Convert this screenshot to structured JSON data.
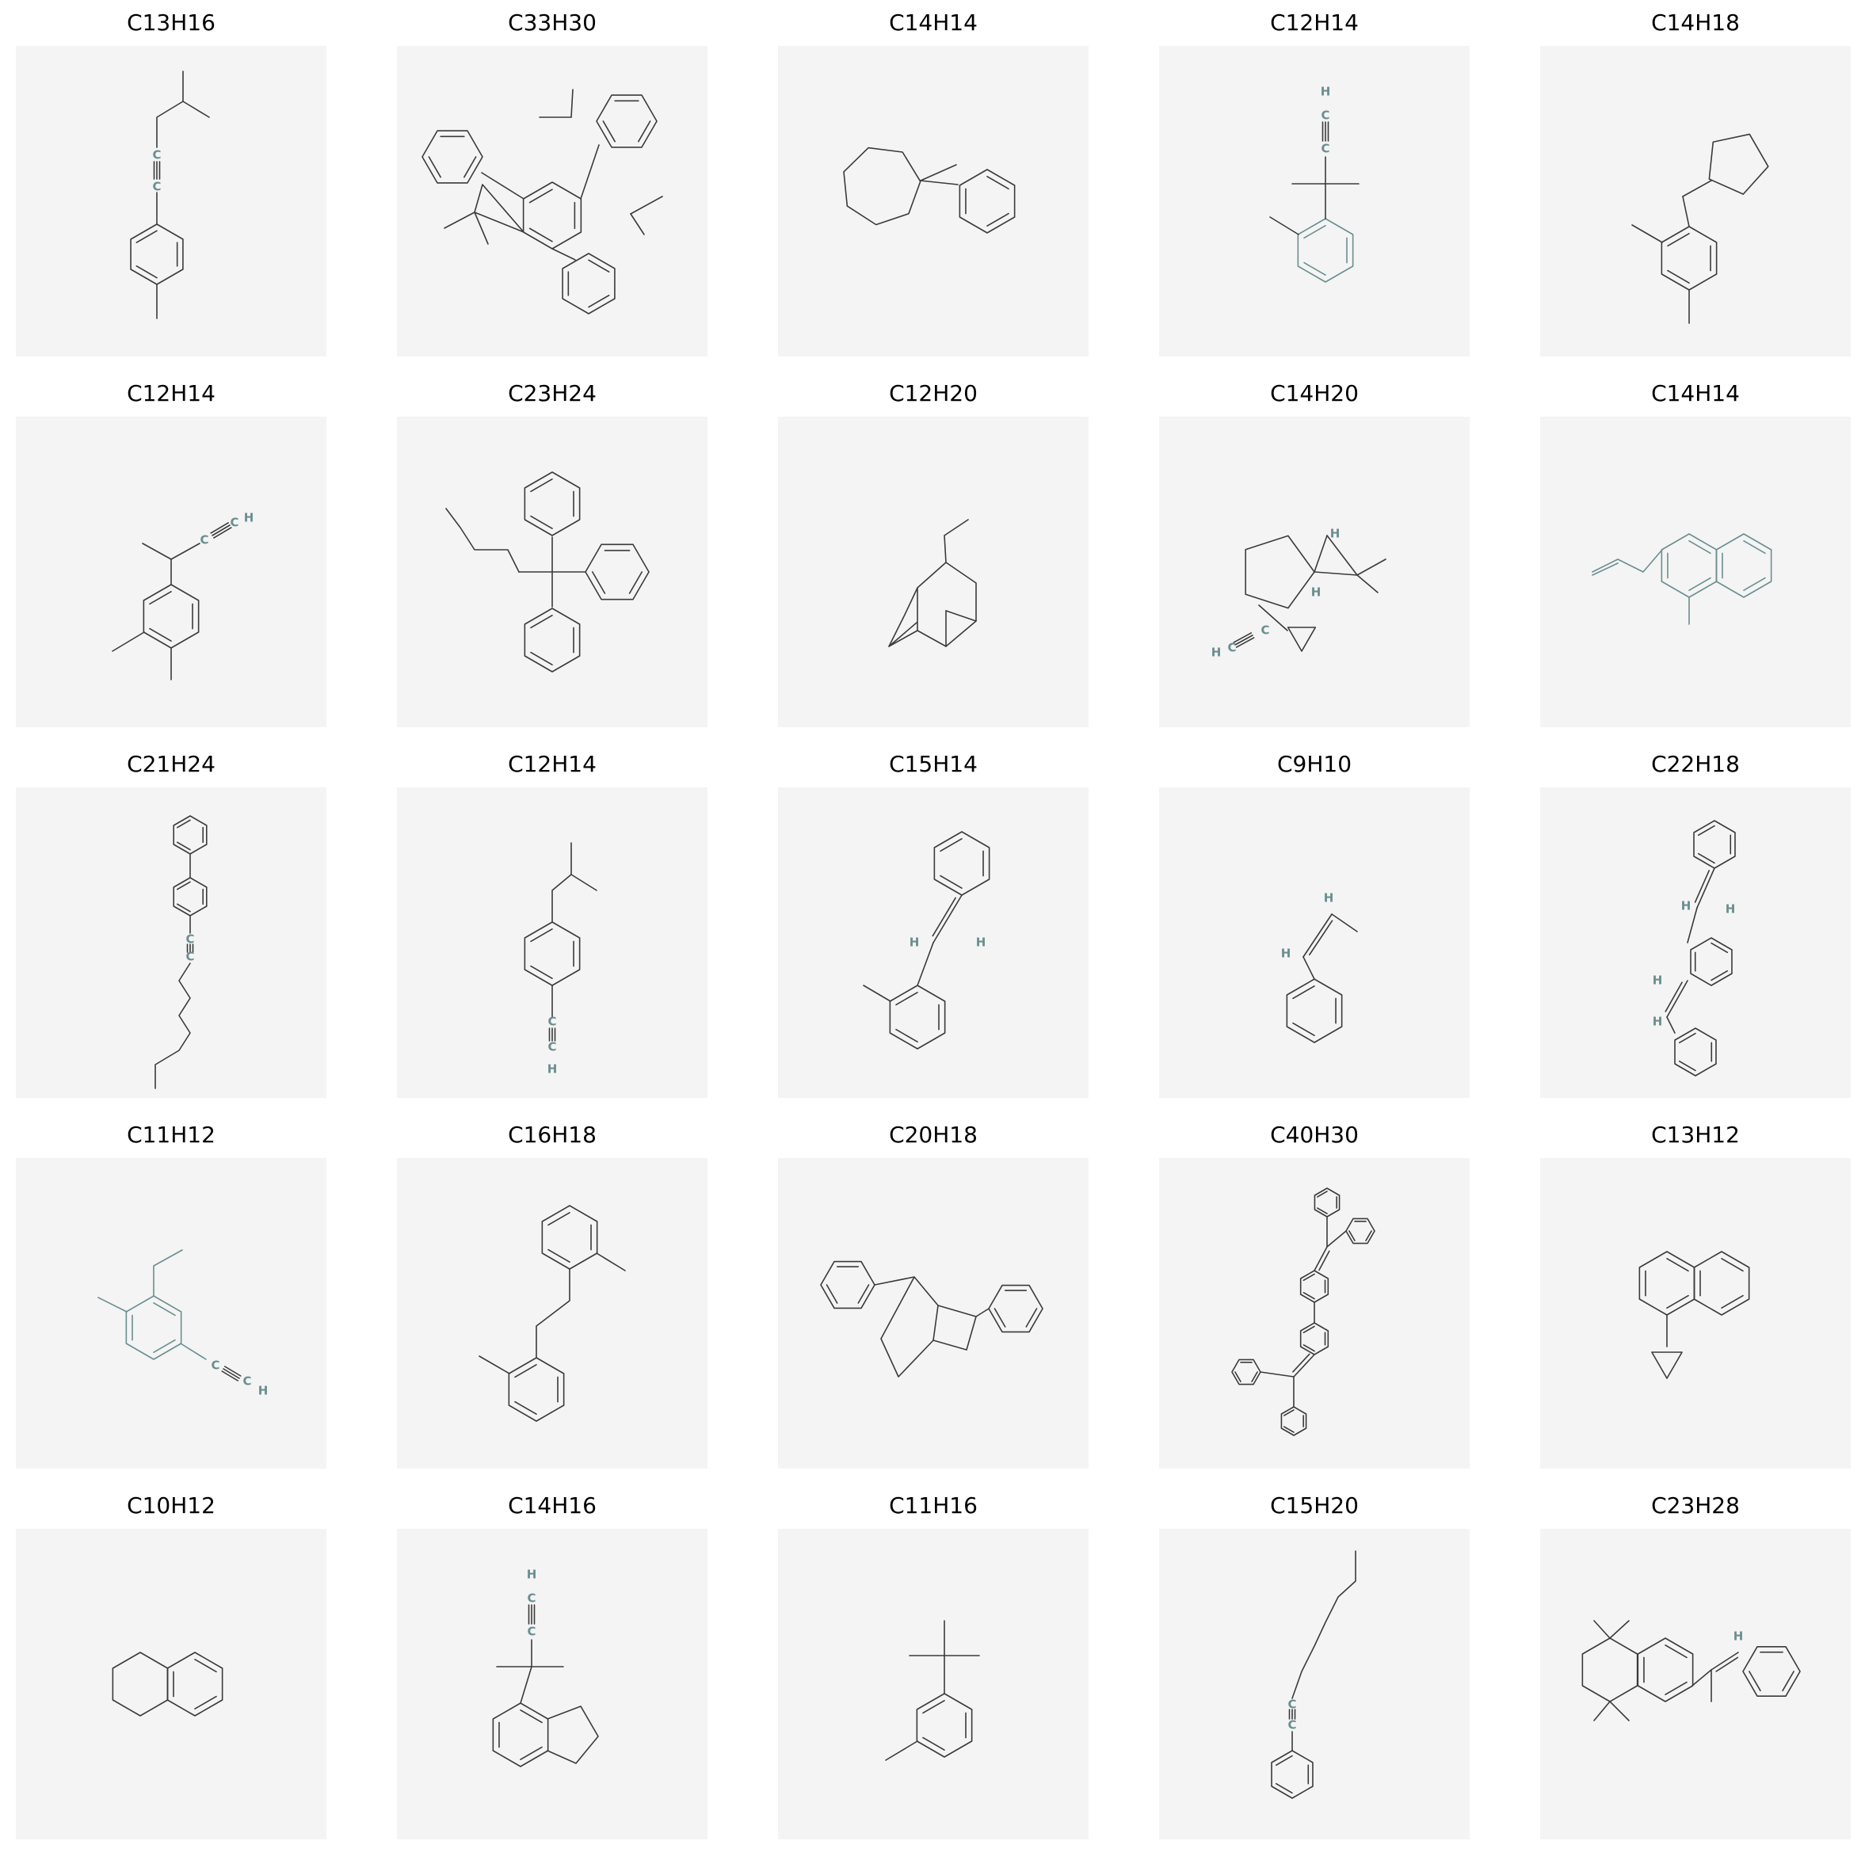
{
  "molecules": [
    {
      "formula": "C13H16",
      "structure": "4-methylphenyl alkyne with isobutyl chain"
    },
    {
      "formula": "C33H30",
      "structure": "hexamethyl truxene"
    },
    {
      "formula": "C14H14",
      "structure": "1-methyl-1-phenyl cycloheptatriene"
    },
    {
      "formula": "C12H14",
      "structure": "2-methylphenyl tertiary alkyne"
    },
    {
      "formula": "C14H18",
      "structure": "cyclopentenylmethyl xylene"
    },
    {
      "formula": "C12H14",
      "structure": "3,4-dimethylphenyl butyne"
    },
    {
      "formula": "C23H24",
      "structure": "triphenyl pentane"
    },
    {
      "formula": "C12H20",
      "structure": "ethyl adamantane"
    },
    {
      "formula": "C14H20",
      "structure": "pinane cyclopropyl alkyne"
    },
    {
      "formula": "C14H14",
      "structure": "allyl methyl naphthalene"
    },
    {
      "formula": "C21H24",
      "structure": "biphenyl octyne"
    },
    {
      "formula": "C12H14",
      "structure": "isobutyl ethynylbenzene"
    },
    {
      "formula": "C15H14",
      "structure": "2-methylstilbene"
    },
    {
      "formula": "C9H10",
      "structure": "propenylbenzene"
    },
    {
      "formula": "C22H18",
      "structure": "bis-styryl benzene"
    },
    {
      "formula": "C11H12",
      "structure": "ethyl methyl ethynylbenzene"
    },
    {
      "formula": "C16H18",
      "structure": "bis(2-methylphenyl)ethane"
    },
    {
      "formula": "C20H18",
      "structure": "diphenyl bicyclooctadiene"
    },
    {
      "formula": "C40H30",
      "structure": "bis(diphenylvinyl)biphenyl"
    },
    {
      "formula": "C13H12",
      "structure": "cyclopropyl naphthalene"
    },
    {
      "formula": "C10H12",
      "structure": "tetralin"
    },
    {
      "formula": "C14H16",
      "structure": "indane tertiary alkyne"
    },
    {
      "formula": "C11H16",
      "structure": "tert-butyl toluene"
    },
    {
      "formula": "C15H20",
      "structure": "phenyl nonyne"
    },
    {
      "formula": "C23H28",
      "structure": "tetramethyltetralin styrene"
    }
  ],
  "colors": {
    "panel": "#f4f4f4",
    "bond": "#3a3a3a",
    "atom": "#6b8e8e"
  }
}
